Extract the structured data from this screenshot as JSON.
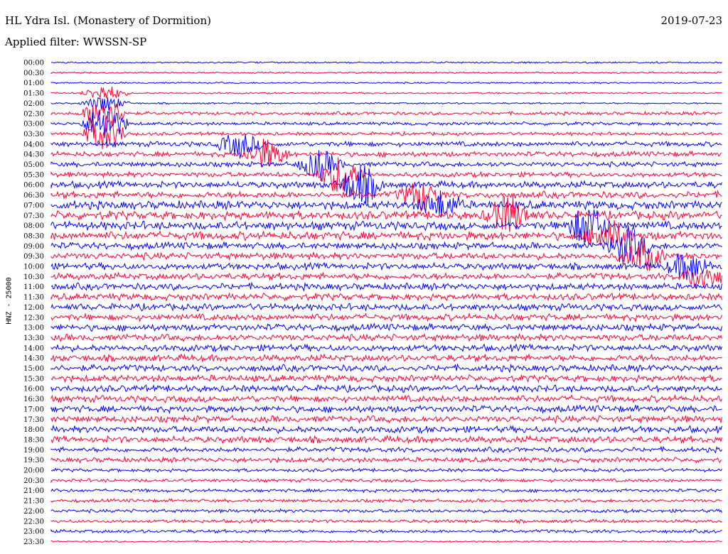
{
  "header": {
    "title": "HL Ydra Isl. (Monastery of Dormition)",
    "filter": "Applied filter: WWSSN-SP",
    "date": "2019-07-23"
  },
  "colors": {
    "blue": "#0000ff",
    "red": "#ff0033"
  },
  "chart_data": {
    "type": "line",
    "title": "HL Ydra Isl. (Monastery of Dormition)",
    "subtitle": "Applied filter: WWSSN-SP",
    "ylabel": "HNZ - 25000",
    "xlabel": "",
    "row_labels": [
      "00:00",
      "00:30",
      "01:00",
      "01:30",
      "02:00",
      "02:30",
      "03:00",
      "03:30",
      "04:00",
      "04:30",
      "05:00",
      "05:30",
      "06:00",
      "06:30",
      "07:00",
      "07:30",
      "08:00",
      "08:30",
      "09:00",
      "09:30",
      "10:00",
      "10:30",
      "11:00",
      "11:30",
      "12:00",
      "12:30",
      "13:00",
      "13:30",
      "14:00",
      "14:30",
      "15:00",
      "15:30",
      "16:00",
      "16:30",
      "17:00",
      "17:30",
      "18:00",
      "18:30",
      "19:00",
      "19:30",
      "20:00",
      "20:30",
      "21:00",
      "21:30",
      "22:00",
      "22:30",
      "23:00",
      "23:30"
    ],
    "series_colors": [
      "blue",
      "red"
    ],
    "noise_level": [
      1,
      1,
      1,
      1,
      1,
      2,
      2,
      2,
      3,
      3,
      3,
      3,
      4,
      4,
      5,
      5,
      5,
      5,
      4,
      4,
      4,
      4,
      4,
      4,
      4,
      4,
      4,
      4,
      4,
      4,
      4,
      4,
      4,
      4,
      4,
      4,
      4,
      4,
      3,
      3,
      2,
      2,
      2,
      2,
      2,
      2,
      2,
      1
    ],
    "events": [
      {
        "row": 3,
        "x": 0.08,
        "amp": 4
      },
      {
        "row": 4,
        "x": 0.08,
        "amp": 4
      },
      {
        "row": 5,
        "x": 0.08,
        "amp": 9
      },
      {
        "row": 6,
        "x": 0.08,
        "amp": 10
      },
      {
        "row": 7,
        "x": 0.08,
        "amp": 8
      },
      {
        "row": 8,
        "x": 0.28,
        "amp": 6
      },
      {
        "row": 9,
        "x": 0.32,
        "amp": 7
      },
      {
        "row": 10,
        "x": 0.4,
        "amp": 7
      },
      {
        "row": 11,
        "x": 0.43,
        "amp": 9
      },
      {
        "row": 12,
        "x": 0.46,
        "amp": 10
      },
      {
        "row": 13,
        "x": 0.55,
        "amp": 7
      },
      {
        "row": 14,
        "x": 0.58,
        "amp": 6
      },
      {
        "row": 15,
        "x": 0.68,
        "amp": 9
      },
      {
        "row": 16,
        "x": 0.8,
        "amp": 10
      },
      {
        "row": 17,
        "x": 0.83,
        "amp": 8
      },
      {
        "row": 18,
        "x": 0.86,
        "amp": 9
      },
      {
        "row": 19,
        "x": 0.88,
        "amp": 8
      },
      {
        "row": 20,
        "x": 0.95,
        "amp": 7
      },
      {
        "row": 21,
        "x": 0.97,
        "amp": 6
      }
    ]
  }
}
